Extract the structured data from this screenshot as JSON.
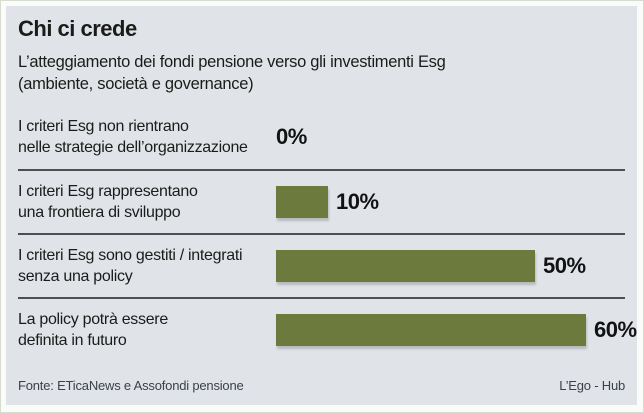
{
  "header": {
    "title": "Chi ci crede",
    "subtitle_line1": "L’atteggiamento dei fondi pensione verso gli investimenti Esg",
    "subtitle_line2": "(ambiente, società e governance)"
  },
  "rows": [
    {
      "label_line1": "I criteri Esg non rientrano",
      "label_line2": "nelle strategie dell’organizzazione",
      "value": 0,
      "value_label": "0%"
    },
    {
      "label_line1": "I criteri Esg rappresentano",
      "label_line2": "una frontiera di sviluppo",
      "value": 10,
      "value_label": "10%"
    },
    {
      "label_line1": "I criteri Esg sono gestiti / integrati",
      "label_line2": "senza una policy",
      "value": 50,
      "value_label": "50%"
    },
    {
      "label_line1": "La policy potrà essere",
      "label_line2": "definita in futuro",
      "value": 60,
      "value_label": "60%"
    }
  ],
  "footer": {
    "source": "Fonte: ETicaNews e Assofondi pensione",
    "credit": "L’Ego - Hub"
  },
  "colors": {
    "panel_bg": "#e0e4e9",
    "bar": "#6c7a3d",
    "divider": "#4d4f52",
    "text": "#1b1b19"
  },
  "chart_data": {
    "type": "bar",
    "orientation": "horizontal",
    "title": "Chi ci crede",
    "subtitle": "L’atteggiamento dei fondi pensione verso gli investimenti Esg (ambiente, società e governance)",
    "categories": [
      "I criteri Esg non rientrano nelle strategie dell’organizzazione",
      "I criteri Esg rappresentano una frontiera di sviluppo",
      "I criteri Esg sono gestiti / integrati senza una policy",
      "La policy potrà essere definita in futuro"
    ],
    "values": [
      0,
      10,
      50,
      60
    ],
    "value_labels": [
      "0%",
      "10%",
      "50%",
      "60%"
    ],
    "unit": "%",
    "xlim": [
      0,
      60
    ],
    "grid": false,
    "legend": false,
    "bar_color": "#6c7a3d",
    "source": "Fonte: ETicaNews e Assofondi pensione",
    "credit": "L’Ego - Hub"
  }
}
